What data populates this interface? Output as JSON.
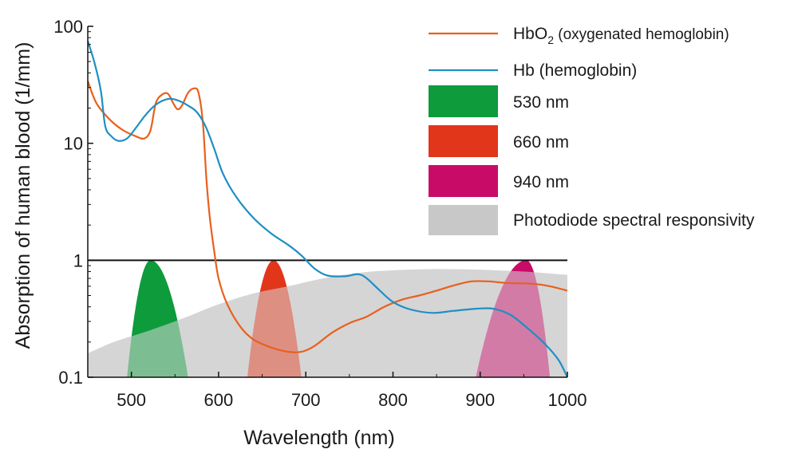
{
  "chart_data": {
    "type": "line",
    "xlabel": "Wavelength (nm)",
    "ylabel": "Absorption of human blood (1/mm)",
    "x_range": [
      450,
      1000
    ],
    "y_range": [
      0.1,
      100
    ],
    "y_scale": "log",
    "x_ticks": [
      500,
      600,
      700,
      800,
      900,
      1000
    ],
    "x_tick_labels": [
      "500",
      "600",
      "700",
      "800",
      "900",
      "1000"
    ],
    "y_ticks": [
      0.1,
      1,
      10,
      100
    ],
    "y_tick_labels": [
      "0.1",
      "1",
      "10",
      "100"
    ],
    "reference_line": {
      "y": 1
    },
    "legend_position": "top-right",
    "series": [
      {
        "name": "HbO2 (oxygenated hemoglobin)",
        "legend_main": "HbO",
        "legend_sub": "2",
        "legend_rest": " (oxygenated hemoglobin)",
        "color": "#e8601c",
        "points": [
          [
            450,
            34
          ],
          [
            460,
            22
          ],
          [
            475,
            16
          ],
          [
            490,
            13
          ],
          [
            505,
            11.5
          ],
          [
            515,
            11
          ],
          [
            522,
            13
          ],
          [
            528,
            22
          ],
          [
            535,
            26
          ],
          [
            542,
            26.5
          ],
          [
            548,
            22
          ],
          [
            553,
            19.5
          ],
          [
            558,
            21
          ],
          [
            565,
            27
          ],
          [
            572,
            29.5
          ],
          [
            577,
            27
          ],
          [
            582,
            15
          ],
          [
            586,
            5
          ],
          [
            590,
            2.3
          ],
          [
            595,
            1.2
          ],
          [
            600,
            0.7
          ],
          [
            610,
            0.42
          ],
          [
            625,
            0.27
          ],
          [
            640,
            0.21
          ],
          [
            660,
            0.18
          ],
          [
            680,
            0.165
          ],
          [
            695,
            0.165
          ],
          [
            710,
            0.185
          ],
          [
            730,
            0.24
          ],
          [
            750,
            0.29
          ],
          [
            770,
            0.33
          ],
          [
            790,
            0.4
          ],
          [
            810,
            0.46
          ],
          [
            830,
            0.5
          ],
          [
            850,
            0.55
          ],
          [
            870,
            0.61
          ],
          [
            890,
            0.66
          ],
          [
            910,
            0.66
          ],
          [
            930,
            0.64
          ],
          [
            960,
            0.63
          ],
          [
            980,
            0.6
          ],
          [
            1000,
            0.55
          ]
        ]
      },
      {
        "name": "Hb (hemoglobin)",
        "color": "#1f8fc4",
        "points": [
          [
            450,
            75
          ],
          [
            458,
            48
          ],
          [
            465,
            28
          ],
          [
            470,
            14
          ],
          [
            477,
            11.5
          ],
          [
            485,
            10.5
          ],
          [
            495,
            11
          ],
          [
            505,
            13.5
          ],
          [
            515,
            17
          ],
          [
            525,
            20.5
          ],
          [
            535,
            23
          ],
          [
            545,
            24
          ],
          [
            555,
            23
          ],
          [
            565,
            21
          ],
          [
            575,
            18.5
          ],
          [
            585,
            14
          ],
          [
            595,
            9
          ],
          [
            605,
            5.5
          ],
          [
            620,
            3.5
          ],
          [
            640,
            2.3
          ],
          [
            660,
            1.7
          ],
          [
            680,
            1.35
          ],
          [
            695,
            1.1
          ],
          [
            710,
            0.85
          ],
          [
            725,
            0.74
          ],
          [
            745,
            0.73
          ],
          [
            760,
            0.76
          ],
          [
            770,
            0.7
          ],
          [
            785,
            0.55
          ],
          [
            800,
            0.44
          ],
          [
            820,
            0.38
          ],
          [
            845,
            0.355
          ],
          [
            870,
            0.37
          ],
          [
            895,
            0.385
          ],
          [
            915,
            0.385
          ],
          [
            935,
            0.34
          ],
          [
            955,
            0.26
          ],
          [
            975,
            0.19
          ],
          [
            990,
            0.14
          ],
          [
            1000,
            0.1
          ]
        ]
      }
    ],
    "bands": [
      {
        "name": "530 nm",
        "center": 522,
        "start": 495,
        "end": 565,
        "peak": 1.0,
        "color": "#0d9b3c"
      },
      {
        "name": "660 nm",
        "center": 663,
        "start": 633,
        "end": 695,
        "peak": 1.0,
        "color": "#e2361a"
      },
      {
        "name": "940 nm",
        "center": 953,
        "start": 895,
        "end": 980,
        "peak": 1.0,
        "color": "#c90b68"
      }
    ],
    "photodiode": {
      "name": "Photodiode spectral responsivity",
      "color": "#c8c8c8",
      "points": [
        [
          450,
          0.16
        ],
        [
          480,
          0.2
        ],
        [
          520,
          0.25
        ],
        [
          560,
          0.32
        ],
        [
          600,
          0.42
        ],
        [
          640,
          0.52
        ],
        [
          680,
          0.6
        ],
        [
          720,
          0.7
        ],
        [
          760,
          0.78
        ],
        [
          800,
          0.82
        ],
        [
          850,
          0.84
        ],
        [
          900,
          0.83
        ],
        [
          950,
          0.8
        ],
        [
          980,
          0.77
        ],
        [
          1000,
          0.75
        ]
      ]
    }
  }
}
